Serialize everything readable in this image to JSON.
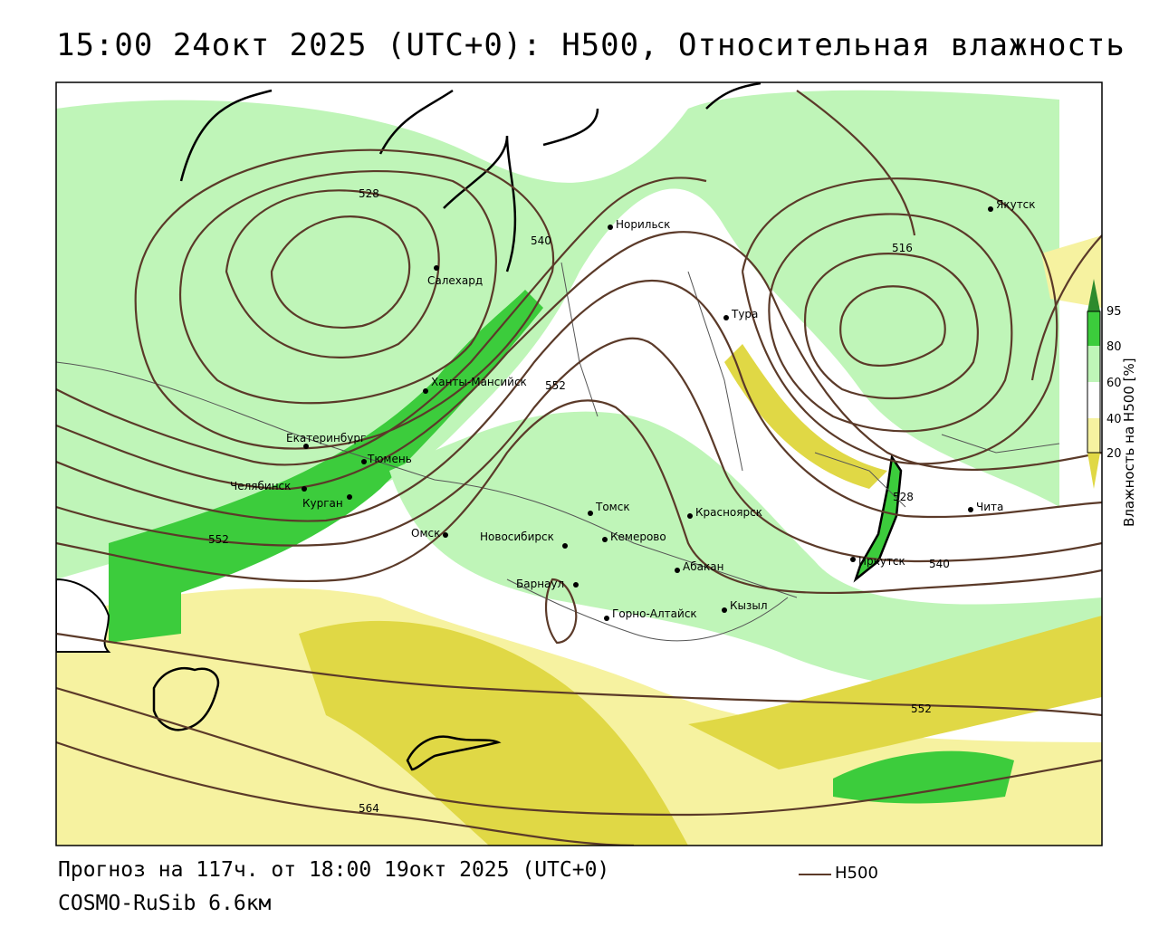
{
  "header": {
    "title": "15:00 24окт 2025 (UTC+0): H500, Относительная влажность"
  },
  "footer": {
    "forecast": "Прогноз на 117ч. от 18:00 19окт 2025 (UTC+0)",
    "model": "COSMO-RuSib 6.6км",
    "legend_label": "H500"
  },
  "colorbar": {
    "title": "Влажность на H500 [%]",
    "ticks": [
      "95",
      "80",
      "60",
      "40",
      "20"
    ],
    "colors": [
      "#2d8a2d",
      "#3ccc3c",
      "#bff5b8",
      "#ffffff",
      "#f6f2a0",
      "#e0d845"
    ]
  },
  "colors": {
    "contour": "#5b3a29",
    "humid_high": "#3ccc3c",
    "humid_mid": "#bff5b8",
    "dry_mid": "#f6f2a0",
    "dry_high": "#e0d845"
  },
  "contours": [
    "528",
    "540",
    "552",
    "516",
    "552",
    "528",
    "540",
    "552",
    "564"
  ],
  "cities": [
    "Якутск",
    "Норильск",
    "Салехард",
    "Тура",
    "Ханты-Мансийск",
    "Екатеринбург",
    "Тюмень",
    "Челябинск",
    "Курган",
    "Омск",
    "Новосибирск",
    "Томск",
    "Кемерово",
    "Красноярск",
    "Абакан",
    "Барнаул",
    "Горно-Алтайск",
    "Кызыл",
    "Иркутск",
    "Чита"
  ]
}
